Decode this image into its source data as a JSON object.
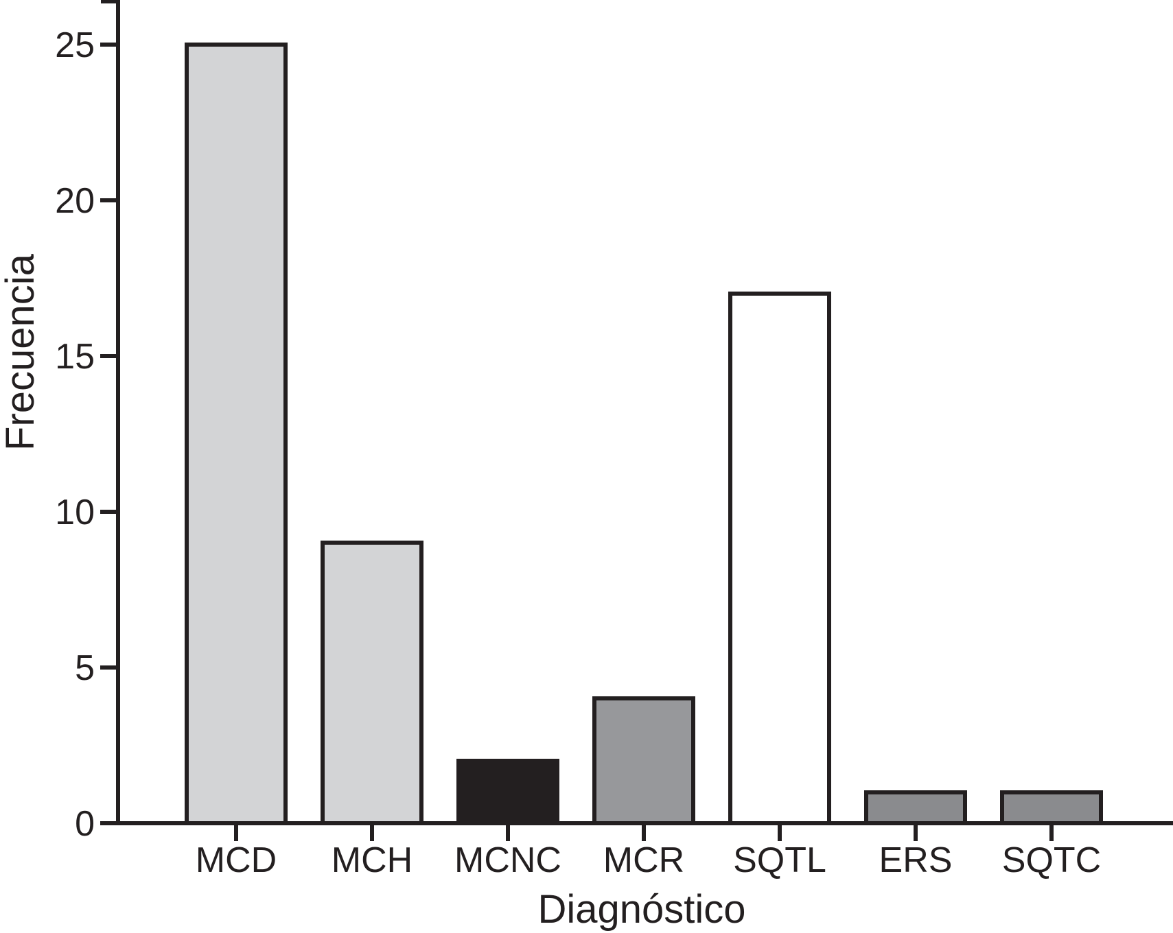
{
  "chart_data": {
    "type": "bar",
    "title": "",
    "xlabel": "Diagnóstico",
    "ylabel": "Frecuencia",
    "categories": [
      "MCD",
      "MCH",
      "MCNC",
      "MCR",
      "SQTL",
      "ERS",
      "SQTC"
    ],
    "values": [
      25,
      9,
      2,
      4,
      17,
      1,
      1
    ],
    "bar_colors": [
      "#d3d4d6",
      "#d3d4d6",
      "#231f20",
      "#97989b",
      "#ffffff",
      "#8a8b8e",
      "#8a8b8e"
    ],
    "bar_border_color": "#231f20",
    "axis_color": "#231f20",
    "yticks": [
      0,
      5,
      10,
      15,
      20,
      25
    ],
    "ylim": [
      0,
      26.4
    ],
    "grid": "off",
    "legend": "none"
  }
}
